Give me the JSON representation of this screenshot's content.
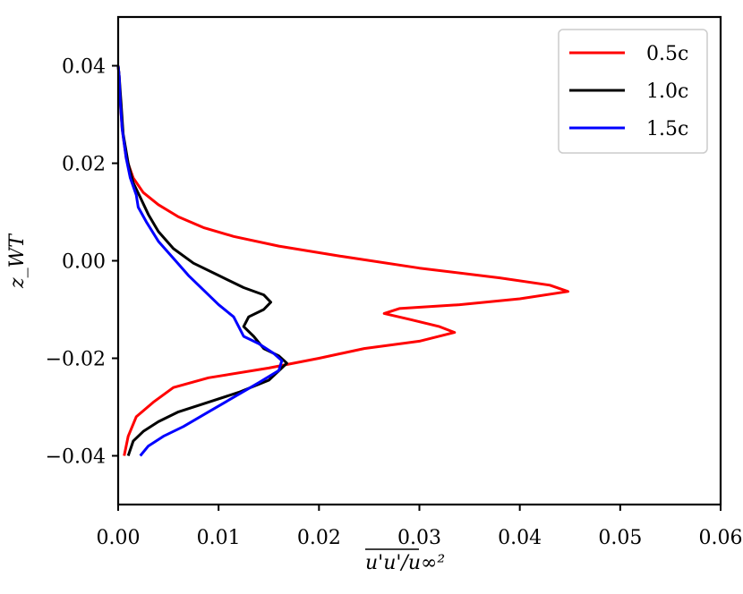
{
  "chart_data": {
    "type": "line",
    "title": "",
    "xlabel": "u'u'/u∞²",
    "ylabel": "z_WT",
    "xlim": [
      0.0,
      0.06
    ],
    "ylim": [
      -0.05,
      0.05
    ],
    "xticks": [
      0.0,
      0.01,
      0.02,
      0.03,
      0.04,
      0.05,
      0.06
    ],
    "yticks": [
      -0.04,
      -0.02,
      0.0,
      0.02,
      0.04
    ],
    "xtick_labels": [
      "0.00",
      "0.01",
      "0.02",
      "0.03",
      "0.04",
      "0.05",
      "0.06"
    ],
    "ytick_labels": [
      "−0.04",
      "−0.02",
      "0.00",
      "0.02",
      "0.04"
    ],
    "grid": false,
    "legend_position": "top-right",
    "series": [
      {
        "name": "0.5c",
        "color": "#ff0000",
        "points": [
          [
            0.0006,
            -0.04
          ],
          [
            0.001,
            -0.036
          ],
          [
            0.0018,
            -0.032
          ],
          [
            0.0035,
            -0.029
          ],
          [
            0.0055,
            -0.026
          ],
          [
            0.009,
            -0.024
          ],
          [
            0.015,
            -0.022
          ],
          [
            0.02,
            -0.02
          ],
          [
            0.0245,
            -0.018
          ],
          [
            0.03,
            -0.0165
          ],
          [
            0.0335,
            -0.0147
          ],
          [
            0.032,
            -0.0135
          ],
          [
            0.029,
            -0.012
          ],
          [
            0.0265,
            -0.0108
          ],
          [
            0.028,
            -0.0098
          ],
          [
            0.034,
            -0.009
          ],
          [
            0.04,
            -0.0078
          ],
          [
            0.0448,
            -0.0063
          ],
          [
            0.043,
            -0.005
          ],
          [
            0.038,
            -0.0035
          ],
          [
            0.03,
            -0.0015
          ],
          [
            0.022,
            0.001
          ],
          [
            0.016,
            0.003
          ],
          [
            0.0115,
            0.005
          ],
          [
            0.0085,
            0.0068
          ],
          [
            0.006,
            0.009
          ],
          [
            0.004,
            0.0115
          ],
          [
            0.0025,
            0.014
          ],
          [
            0.0015,
            0.017
          ],
          [
            0.0008,
            0.021
          ],
          [
            0.0004,
            0.027
          ],
          [
            0.0002,
            0.033
          ],
          [
            0.0001,
            0.038
          ],
          [
            0.0,
            0.04
          ]
        ]
      },
      {
        "name": "1.0c",
        "color": "#000000",
        "points": [
          [
            0.001,
            -0.04
          ],
          [
            0.0015,
            -0.037
          ],
          [
            0.0025,
            -0.035
          ],
          [
            0.004,
            -0.033
          ],
          [
            0.006,
            -0.031
          ],
          [
            0.009,
            -0.029
          ],
          [
            0.012,
            -0.027
          ],
          [
            0.015,
            -0.0245
          ],
          [
            0.0168,
            -0.021
          ],
          [
            0.016,
            -0.0195
          ],
          [
            0.0145,
            -0.018
          ],
          [
            0.0135,
            -0.0155
          ],
          [
            0.0125,
            -0.0135
          ],
          [
            0.013,
            -0.0115
          ],
          [
            0.0145,
            -0.01
          ],
          [
            0.0152,
            -0.0085
          ],
          [
            0.0145,
            -0.007
          ],
          [
            0.0125,
            -0.0055
          ],
          [
            0.01,
            -0.003
          ],
          [
            0.0075,
            -0.0005
          ],
          [
            0.0055,
            0.0025
          ],
          [
            0.004,
            0.006
          ],
          [
            0.003,
            0.0095
          ],
          [
            0.0022,
            0.013
          ],
          [
            0.0015,
            0.016
          ],
          [
            0.001,
            0.02
          ],
          [
            0.0005,
            0.026
          ],
          [
            0.0003,
            0.032
          ],
          [
            0.0001,
            0.038
          ],
          [
            0.0,
            0.04
          ]
        ]
      },
      {
        "name": "1.5c",
        "color": "#0000ff",
        "points": [
          [
            0.0022,
            -0.04
          ],
          [
            0.003,
            -0.038
          ],
          [
            0.0045,
            -0.036
          ],
          [
            0.0065,
            -0.034
          ],
          [
            0.009,
            -0.031
          ],
          [
            0.0115,
            -0.028
          ],
          [
            0.014,
            -0.025
          ],
          [
            0.016,
            -0.0225
          ],
          [
            0.0163,
            -0.0205
          ],
          [
            0.0155,
            -0.019
          ],
          [
            0.014,
            -0.017
          ],
          [
            0.0125,
            -0.0155
          ],
          [
            0.012,
            -0.0135
          ],
          [
            0.0115,
            -0.0115
          ],
          [
            0.01,
            -0.009
          ],
          [
            0.0085,
            -0.006
          ],
          [
            0.007,
            -0.003
          ],
          [
            0.0055,
            0.0005
          ],
          [
            0.004,
            0.004
          ],
          [
            0.0028,
            0.008
          ],
          [
            0.002,
            0.011
          ],
          [
            0.0018,
            0.0135
          ],
          [
            0.0012,
            0.017
          ],
          [
            0.0008,
            0.021
          ],
          [
            0.0004,
            0.027
          ],
          [
            0.0002,
            0.033
          ],
          [
            0.0001,
            0.038
          ],
          [
            0.0,
            0.04
          ]
        ]
      }
    ]
  }
}
